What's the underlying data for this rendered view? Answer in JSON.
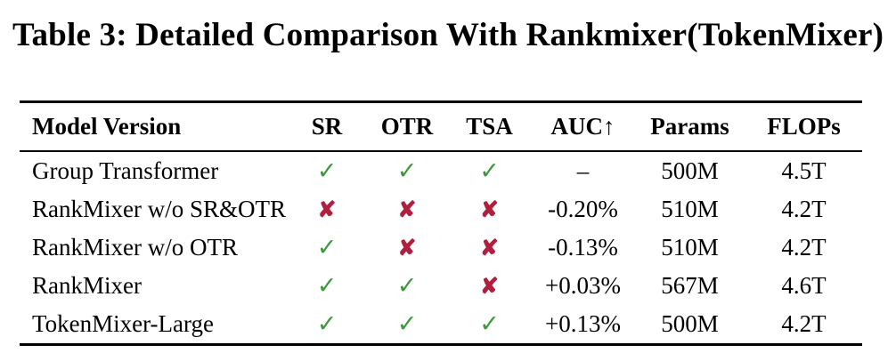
{
  "title": "Table 3: Detailed Comparison With Rankmixer(TokenMixer)",
  "table": {
    "columns": [
      "Model Version",
      "SR",
      "OTR",
      "TSA",
      "AUC↑",
      "Params",
      "FLOPs"
    ],
    "rows": [
      {
        "model": "Group Transformer",
        "sr": "check",
        "otr": "check",
        "tsa": "check",
        "auc": "–",
        "params": "500M",
        "flops": "4.5T"
      },
      {
        "model": "RankMixer w/o SR&OTR",
        "sr": "cross",
        "otr": "cross",
        "tsa": "cross",
        "auc": "-0.20%",
        "params": "510M",
        "flops": "4.2T"
      },
      {
        "model": "RankMixer w/o OTR",
        "sr": "check",
        "otr": "cross",
        "tsa": "cross",
        "auc": "-0.13%",
        "params": "510M",
        "flops": "4.2T"
      },
      {
        "model": "RankMixer",
        "sr": "check",
        "otr": "check",
        "tsa": "cross",
        "auc": "+0.03%",
        "params": "567M",
        "flops": "4.6T"
      },
      {
        "model": "TokenMixer-Large",
        "sr": "check",
        "otr": "check",
        "tsa": "check",
        "auc": "+0.13%",
        "params": "500M",
        "flops": "4.2T"
      }
    ]
  },
  "icons": {
    "check": "✓",
    "cross": "✘"
  },
  "colors": {
    "check_green": "#3a9a3a",
    "cross_red": "#b01f3d",
    "text": "#000000",
    "background": "#ffffff"
  }
}
